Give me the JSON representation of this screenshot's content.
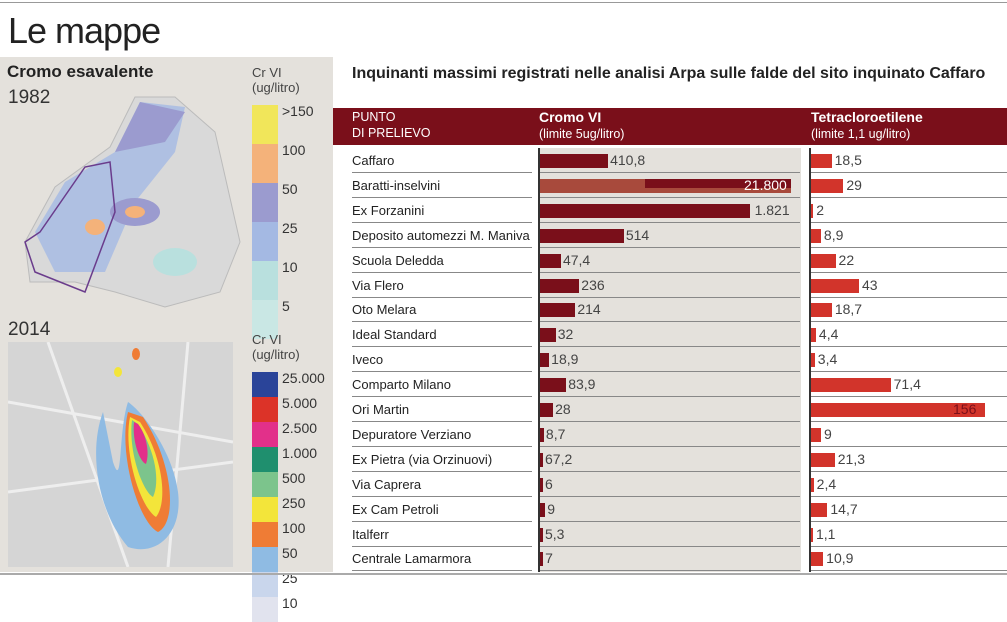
{
  "title": "Le mappe",
  "left_panel": {
    "heading": "Cromo esavalente",
    "map1": {
      "year": "1982",
      "legend_title": "Cr VI",
      "legend_unit": "(ug/litro)",
      "legend": [
        {
          "label": ">150",
          "color": "#f1e65a"
        },
        {
          "label": "100",
          "color": "#f4b27a"
        },
        {
          "label": "50",
          "color": "#9b9bcf"
        },
        {
          "label": "25",
          "color": "#a4b9e3"
        },
        {
          "label": "10",
          "color": "#b9e0de"
        },
        {
          "label": "5",
          "color": "#c9e7e4"
        }
      ]
    },
    "map2": {
      "year": "2014",
      "legend_title": "Cr VI",
      "legend_unit": "(ug/litro)",
      "legend": [
        {
          "label": "25.000",
          "color": "#2a4499"
        },
        {
          "label": "5.000",
          "color": "#dc3328"
        },
        {
          "label": "2.500",
          "color": "#e2308a"
        },
        {
          "label": "1.000",
          "color": "#1f8f6e"
        },
        {
          "label": "500",
          "color": "#7cc48c"
        },
        {
          "label": "250",
          "color": "#f3e53a"
        },
        {
          "label": "100",
          "color": "#ef7c35"
        },
        {
          "label": "50",
          "color": "#8fbbe3"
        },
        {
          "label": "25",
          "color": "#c9d6ec"
        },
        {
          "label": "10",
          "color": "#e1e3ee"
        }
      ]
    }
  },
  "table": {
    "title": "Inquinanti massimi registrati nelle analisi Arpa sulle falde del sito inquinato Caffaro",
    "col_point_1": "PUNTO",
    "col_point_2": "DI PRELIEVO",
    "col_cromo": "Cromo VI",
    "col_cromo_limit": "(limite 5ug/litro)",
    "col_tetra": "Tetracloroetilene",
    "col_tetra_limit": "(limite 1,1 ug/litro)",
    "colors": {
      "header": "#7a0f1a",
      "cromo_bar": "#7a0f1a",
      "cromo_bar_broken": "#a84a3c",
      "tetra_bar": "#d2342b"
    }
  },
  "chart_data": {
    "type": "bar",
    "title": "Inquinanti massimi registrati nelle analisi Arpa sulle falde del sito inquinato Caffaro",
    "categories": [
      "Caffaro",
      "Baratti-inselvini",
      "Ex  Forzanini",
      "Deposito automezzi M. Maniva",
      "Scuola Deledda",
      "Via Flero",
      "Oto Melara",
      "Ideal Standard",
      "Iveco",
      "Comparto Milano",
      "Ori Martin",
      "Depuratore Verziano",
      "Ex Pietra (via Orzinuovi)",
      "Via Caprera",
      "Ex Cam Petroli",
      "Italferr",
      "Centrale Lamarmora"
    ],
    "series": [
      {
        "name": "Cromo VI",
        "unit": "ug/litro",
        "limit": 5,
        "values": [
          410.8,
          21800,
          1821,
          514,
          47.4,
          236,
          214,
          32,
          18.9,
          83.9,
          28,
          8.7,
          67.2,
          6,
          9,
          5.3,
          7
        ],
        "labels": [
          "410,8",
          "21.800",
          "1.821",
          "514",
          "47,4",
          "236",
          "214",
          "32",
          "18,9",
          "83,9",
          "28",
          "8,7",
          "67,2",
          "6",
          "9",
          "5,3",
          "7"
        ],
        "bar_fill": [
          0.26,
          0.97,
          0.8,
          0.32,
          0.08,
          0.15,
          0.135,
          0.06,
          0.035,
          0.1,
          0.05,
          0.015,
          0.008,
          0.01,
          0.02,
          0.008,
          0.012
        ]
      },
      {
        "name": "Tetracloroetilene",
        "unit": "ug/litro",
        "limit": 1.1,
        "values": [
          18.5,
          29,
          2,
          8.9,
          22,
          43,
          18.7,
          4.4,
          3.4,
          71.4,
          156,
          9,
          21.3,
          2.4,
          14.7,
          1.1,
          10.9
        ],
        "labels": [
          "18,5",
          "29",
          "2",
          "8,9",
          "22",
          "43",
          "18,7",
          "4,4",
          "3,4",
          "71,4",
          "156",
          "9",
          "21,3",
          "2,4",
          "14,7",
          "1,1",
          "10,9"
        ]
      }
    ]
  }
}
